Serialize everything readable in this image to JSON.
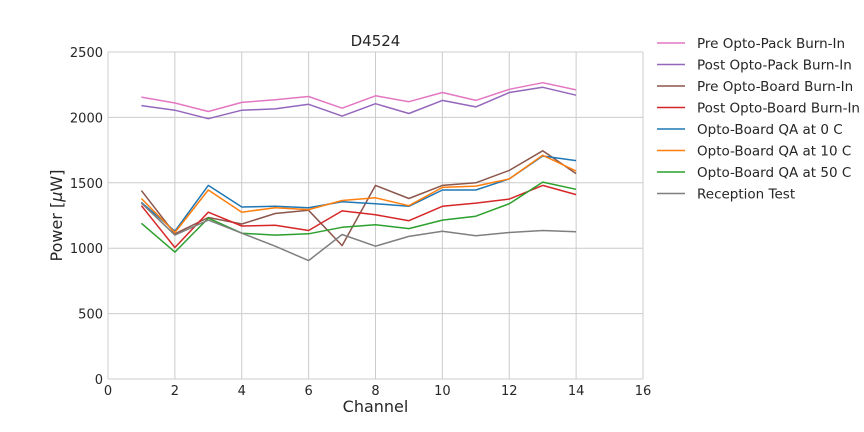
{
  "chart_data": {
    "type": "line",
    "title": "D4524",
    "xlabel": "Channel",
    "ylabel_prefix": "Power [",
    "ylabel_mu": "μ",
    "ylabel_suffix": "W]",
    "xlim": [
      0,
      16
    ],
    "ylim": [
      0,
      2500
    ],
    "xticks": [
      0,
      2,
      4,
      6,
      8,
      10,
      12,
      14,
      16
    ],
    "yticks": [
      0,
      500,
      1000,
      1500,
      2000,
      2500
    ],
    "grid": true,
    "legend_position": "outside-right",
    "x": [
      1,
      2,
      3,
      4,
      5,
      6,
      7,
      8,
      9,
      10,
      11,
      12,
      13,
      14
    ],
    "series": [
      {
        "name": "Pre Opto-Pack Burn-In",
        "color": "#e377c2",
        "values": [
          2155,
          2110,
          2045,
          2115,
          2135,
          2160,
          2070,
          2165,
          2120,
          2190,
          2130,
          2215,
          2265,
          2210
        ]
      },
      {
        "name": "Post Opto-Pack Burn-In",
        "color": "#9467bd",
        "values": [
          2090,
          2055,
          1990,
          2055,
          2065,
          2100,
          2010,
          2105,
          2030,
          2130,
          2080,
          2190,
          2230,
          2170
        ]
      },
      {
        "name": "Pre Opto-Board Burn-In",
        "color": "#8c564b",
        "values": [
          1440,
          1110,
          1235,
          1185,
          1265,
          1290,
          1020,
          1480,
          1380,
          1480,
          1500,
          1595,
          1745,
          1570
        ]
      },
      {
        "name": "Post Opto-Board Burn-In",
        "color": "#d62728",
        "values": [
          1325,
          1005,
          1275,
          1170,
          1175,
          1135,
          1285,
          1255,
          1210,
          1320,
          1345,
          1375,
          1480,
          1410
        ]
      },
      {
        "name": "Opto-Board QA at 0 C",
        "color": "#1f77b4",
        "values": [
          1350,
          1130,
          1480,
          1315,
          1320,
          1310,
          1355,
          1340,
          1320,
          1445,
          1445,
          1530,
          1705,
          1670
        ]
      },
      {
        "name": "Opto-Board QA at 10 C",
        "color": "#ff7f0e",
        "values": [
          1380,
          1120,
          1445,
          1275,
          1310,
          1295,
          1365,
          1385,
          1325,
          1465,
          1475,
          1530,
          1710,
          1590
        ]
      },
      {
        "name": "Opto-Board QA at 50 C",
        "color": "#2ca02c",
        "values": [
          1190,
          970,
          1230,
          1115,
          1100,
          1110,
          1160,
          1180,
          1150,
          1215,
          1245,
          1340,
          1505,
          1450
        ]
      },
      {
        "name": "Reception Test",
        "color": "#7f7f7f",
        "values": [
          1345,
          1100,
          1215,
          1115,
          1015,
          905,
          1105,
          1015,
          1090,
          1130,
          1095,
          1120,
          1135,
          1125
        ]
      }
    ]
  }
}
